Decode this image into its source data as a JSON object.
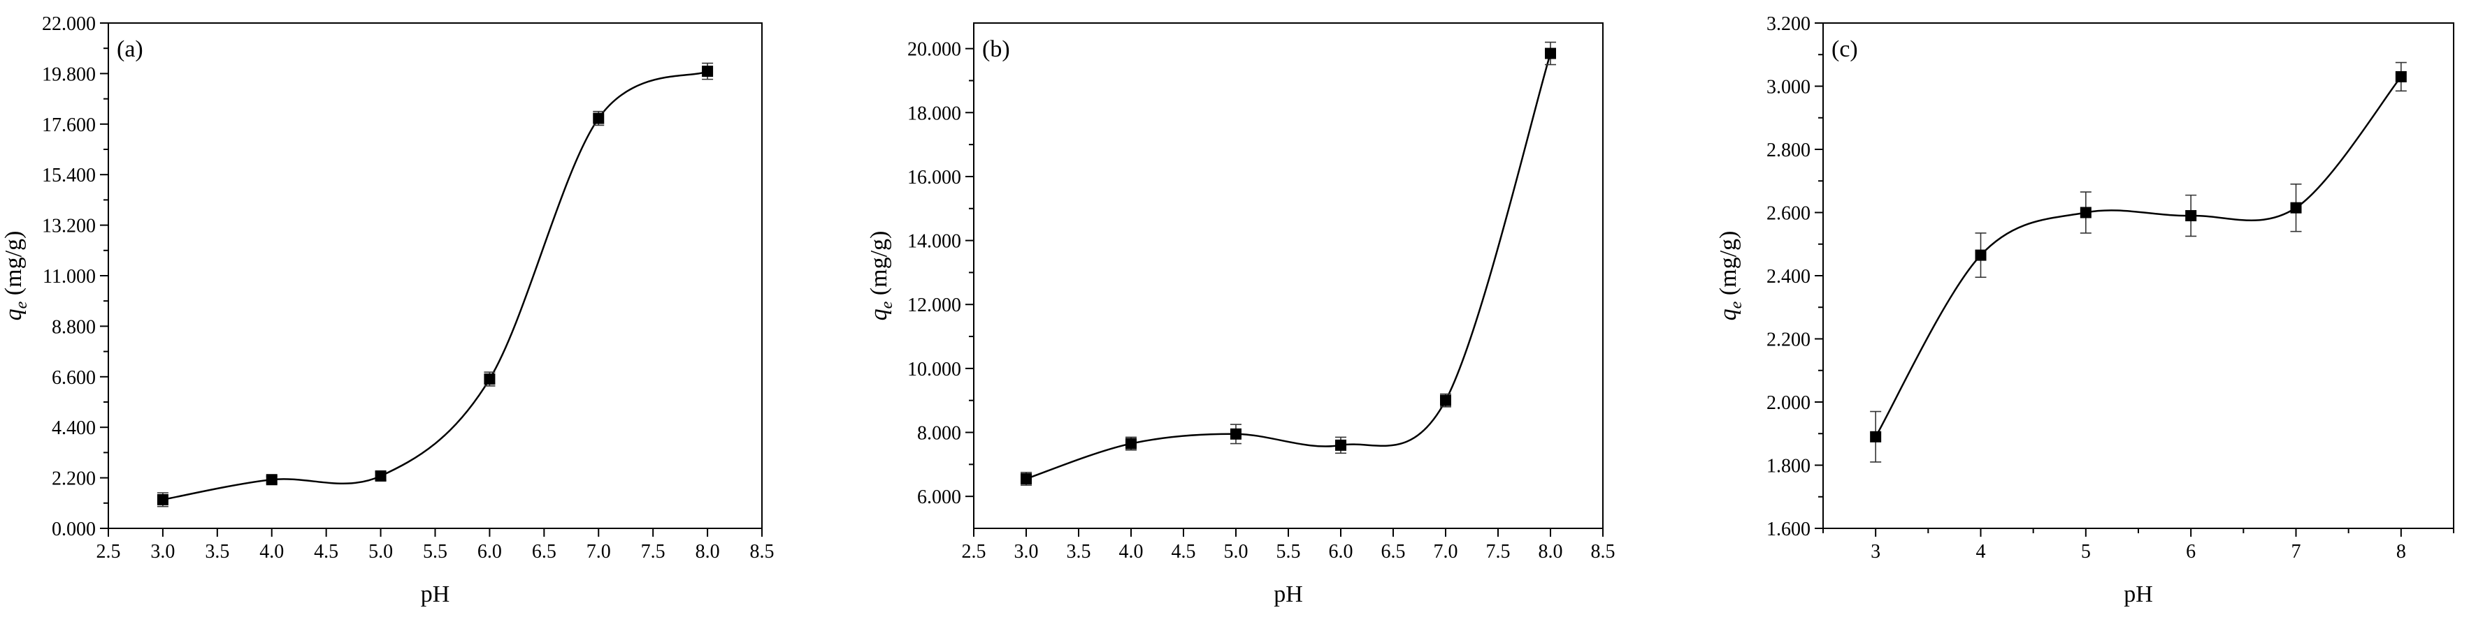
{
  "chart_data": [
    {
      "type": "scatter",
      "panel_label": "(a)",
      "xlabel": "pH",
      "ylabel": "q_e (mg/g)",
      "ylabel_parts": {
        "main": "q",
        "sub": "e",
        "rest": " (mg/g)"
      },
      "xlim": [
        2.5,
        8.5
      ],
      "ylim": [
        0.0,
        22.0
      ],
      "x_ticks": [
        "2.5",
        "3.0",
        "3.5",
        "4.0",
        "4.5",
        "5.0",
        "5.5",
        "6.0",
        "6.5",
        "7.0",
        "7.5",
        "8.0",
        "8.5"
      ],
      "y_ticks": [
        "0.000",
        "2.200",
        "4.400",
        "6.600",
        "8.800",
        "11.000",
        "13.200",
        "15.400",
        "17.600",
        "19.800",
        "22.000"
      ],
      "grid": false,
      "series": [
        {
          "x": [
            3.0,
            4.0,
            5.0,
            6.0,
            7.0,
            8.0
          ],
          "y": [
            1.25,
            2.12,
            2.28,
            6.5,
            17.85,
            19.9
          ],
          "error": [
            0.3,
            0.15,
            0.18,
            0.3,
            0.3,
            0.35
          ]
        }
      ]
    },
    {
      "type": "scatter",
      "panel_label": "(b)",
      "xlabel": "pH",
      "ylabel": "q_e (mg/g)",
      "ylabel_parts": {
        "main": "q",
        "sub": "e",
        "rest": " (mg/g)"
      },
      "xlim": [
        2.5,
        8.5
      ],
      "ylim": [
        5.0,
        20.8
      ],
      "x_ticks": [
        "2.5",
        "3.0",
        "3.5",
        "4.0",
        "4.5",
        "5.0",
        "5.5",
        "6.0",
        "6.5",
        "7.0",
        "7.5",
        "8.0",
        "8.5"
      ],
      "y_ticks": [
        "6.000",
        "8.000",
        "10.000",
        "12.000",
        "14.000",
        "16.000",
        "18.000",
        "20.000"
      ],
      "grid": false,
      "series": [
        {
          "x": [
            3.0,
            4.0,
            5.0,
            6.0,
            7.0,
            8.0
          ],
          "y": [
            6.55,
            7.65,
            7.95,
            7.6,
            9.0,
            19.85
          ],
          "error": [
            0.2,
            0.2,
            0.3,
            0.25,
            0.2,
            0.35
          ]
        }
      ]
    },
    {
      "type": "scatter",
      "panel_label": "(c)",
      "xlabel": "pH",
      "ylabel": "q_e (mg/g)",
      "ylabel_parts": {
        "main": "q",
        "sub": "e",
        "rest": " (mg/g)"
      },
      "xlim": [
        2.5,
        8.5
      ],
      "ylim": [
        1.6,
        3.2
      ],
      "x_ticks": [
        "3",
        "4",
        "5",
        "6",
        "7",
        "8"
      ],
      "y_ticks": [
        "1.600",
        "1.800",
        "2.000",
        "2.200",
        "2.400",
        "2.600",
        "2.800",
        "3.000",
        "3.200"
      ],
      "grid": false,
      "series": [
        {
          "x": [
            3,
            4,
            5,
            6,
            7,
            8
          ],
          "y": [
            1.89,
            2.465,
            2.6,
            2.59,
            2.615,
            3.03
          ],
          "error": [
            0.08,
            0.07,
            0.065,
            0.065,
            0.075,
            0.045
          ]
        }
      ]
    }
  ]
}
